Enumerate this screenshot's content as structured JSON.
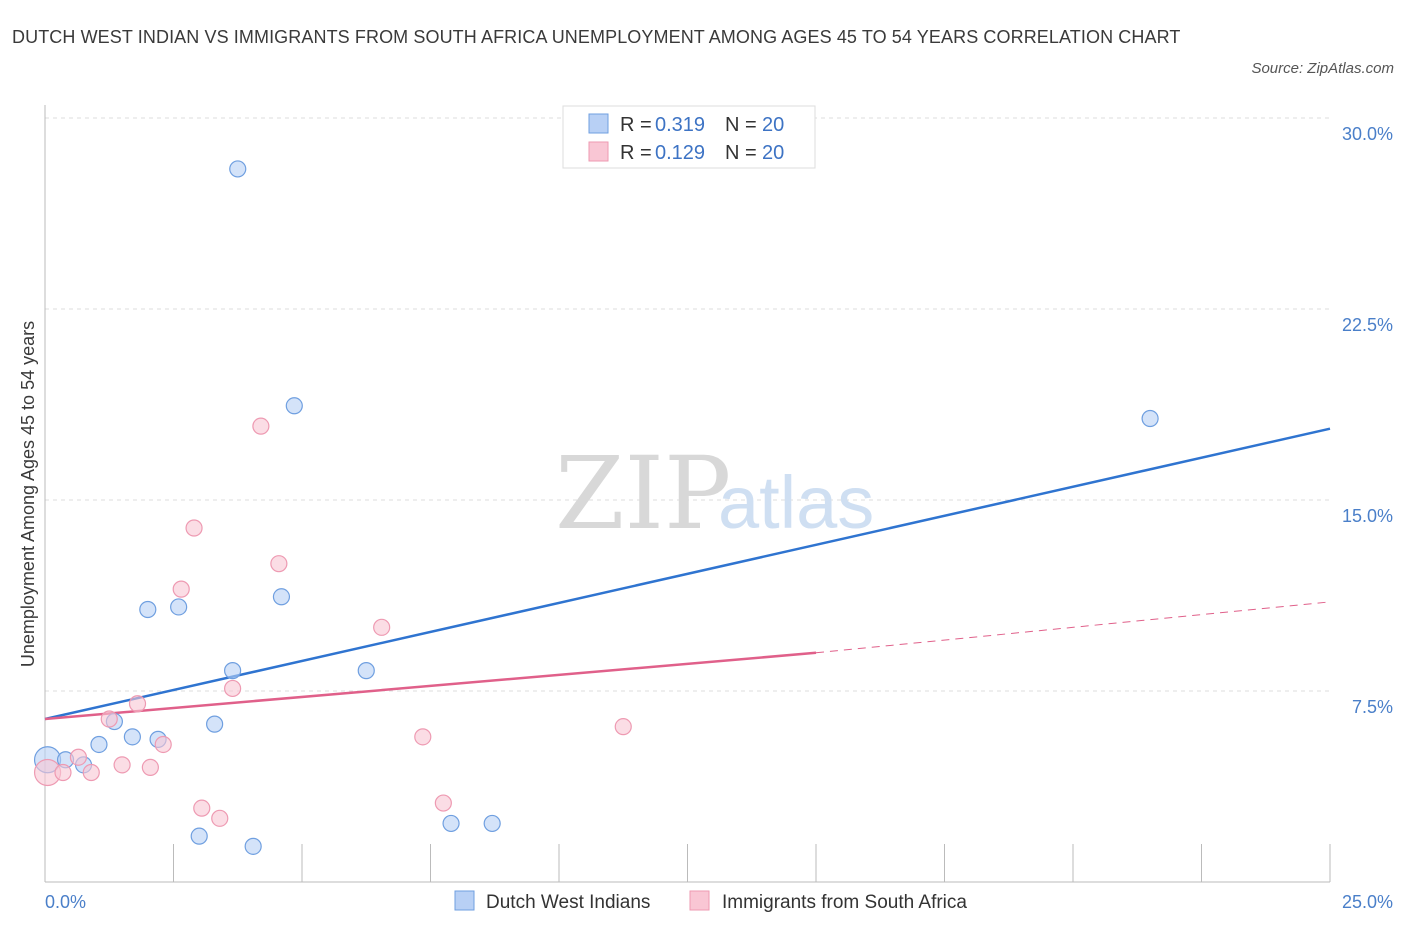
{
  "title": "DUTCH WEST INDIAN VS IMMIGRANTS FROM SOUTH AFRICA UNEMPLOYMENT AMONG AGES 45 TO 54 YEARS CORRELATION CHART",
  "source": "Source: ZipAtlas.com",
  "watermark": {
    "zip": "ZIP",
    "atlas": "atlas"
  },
  "legend": {
    "rows": [
      {
        "r_label": "R = ",
        "r_value": "0.319",
        "n_label": "N = ",
        "n_value": "20"
      },
      {
        "r_label": "R = ",
        "r_value": "0.129",
        "n_label": "N = ",
        "n_value": "20"
      }
    ]
  },
  "colors": {
    "blue_fill": "#b8d0f5",
    "blue_stroke": "#6f9fe0",
    "blue_line": "#2f74d0",
    "pink_fill": "#f9c6d4",
    "pink_stroke": "#ee9ab2",
    "pink_line": "#e0608a",
    "grid": "#dddddd",
    "axis": "#bbbbbb",
    "tick_label": "#4a7fc9"
  },
  "chart_data": {
    "type": "scatter",
    "title": "DUTCH WEST INDIAN VS IMMIGRANTS FROM SOUTH AFRICA UNEMPLOYMENT AMONG AGES 45 TO 54 YEARS CORRELATION CHART",
    "xlabel": "",
    "ylabel": "Unemployment Among Ages 45 to 54 years",
    "xlim": [
      0,
      25
    ],
    "ylim": [
      0,
      30
    ],
    "x_tick_labels": [
      "0.0%",
      "25.0%"
    ],
    "y_ticks": [
      7.5,
      15,
      22.5,
      30
    ],
    "y_tick_labels": [
      "7.5%",
      "15.0%",
      "22.5%",
      "30.0%"
    ],
    "grid": true,
    "legend_placement": "top-center",
    "series": [
      {
        "name": "Dutch West Indians",
        "r": 0.319,
        "n": 20,
        "points": [
          [
            0.05,
            4.8
          ],
          [
            0.4,
            4.8
          ],
          [
            0.75,
            4.6
          ],
          [
            1.05,
            5.4
          ],
          [
            1.35,
            6.3
          ],
          [
            1.7,
            5.7
          ],
          [
            2.0,
            10.7
          ],
          [
            2.2,
            5.6
          ],
          [
            2.6,
            10.8
          ],
          [
            3.0,
            1.8
          ],
          [
            3.3,
            6.2
          ],
          [
            3.65,
            8.3
          ],
          [
            3.75,
            28.0
          ],
          [
            4.05,
            1.4
          ],
          [
            4.6,
            11.2
          ],
          [
            4.85,
            18.7
          ],
          [
            6.25,
            8.3
          ],
          [
            7.9,
            2.3
          ],
          [
            8.7,
            2.3
          ],
          [
            21.5,
            18.2
          ]
        ],
        "trend": {
          "x": [
            0,
            25
          ],
          "y": [
            6.4,
            17.8
          ]
        }
      },
      {
        "name": "Immigrants from South Africa",
        "r": 0.129,
        "n": 20,
        "points": [
          [
            0.05,
            4.3
          ],
          [
            0.35,
            4.3
          ],
          [
            0.65,
            4.9
          ],
          [
            0.9,
            4.3
          ],
          [
            1.25,
            6.4
          ],
          [
            1.5,
            4.6
          ],
          [
            1.8,
            7.0
          ],
          [
            2.05,
            4.5
          ],
          [
            2.3,
            5.4
          ],
          [
            2.65,
            11.5
          ],
          [
            2.9,
            13.9
          ],
          [
            3.05,
            2.9
          ],
          [
            3.4,
            2.5
          ],
          [
            3.65,
            7.6
          ],
          [
            4.2,
            17.9
          ],
          [
            4.55,
            12.5
          ],
          [
            6.55,
            10.0
          ],
          [
            7.35,
            5.7
          ],
          [
            7.75,
            3.1
          ],
          [
            11.25,
            6.1
          ]
        ],
        "trend": {
          "x": [
            0,
            15
          ],
          "y": [
            6.4,
            9.0
          ]
        },
        "trend_extension": {
          "x": [
            15,
            25
          ],
          "y": [
            9.0,
            11.0
          ]
        }
      }
    ]
  }
}
